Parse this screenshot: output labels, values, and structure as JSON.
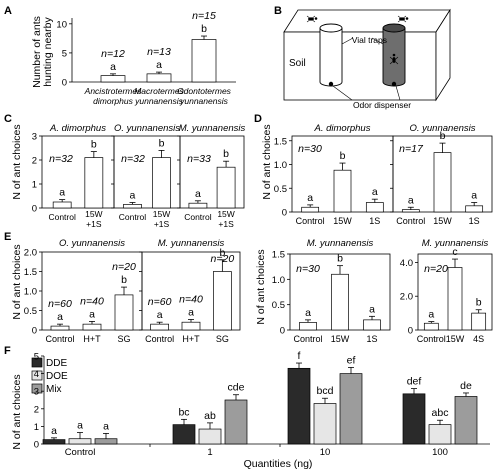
{
  "panels": {
    "A": {
      "letter": "A",
      "ylabel": [
        "Number of ants",
        "hunting nearby"
      ],
      "yticks": [
        "0",
        "5",
        "10"
      ],
      "chart_data": {
        "type": "bar",
        "ylim": [
          0,
          11
        ],
        "categories": [
          [
            "Ancistrotermes",
            "dimorphus"
          ],
          [
            "Macrotermes",
            "yunnanensis"
          ],
          [
            "Odontotermes",
            "yunnanensis"
          ]
        ],
        "values": [
          1.1,
          1.4,
          7.3
        ],
        "errors": [
          0.3,
          0.3,
          0.6
        ],
        "letters": [
          "a",
          "a",
          "b"
        ],
        "n_labels": [
          "n=12",
          "n=13",
          "n=15"
        ]
      }
    },
    "B": {
      "letter": "B",
      "soil_label": "Soil",
      "vial_label": "Vial traps",
      "odor_label": "Odor dispenser"
    },
    "C": {
      "letter": "C",
      "ylabel": "N of ant choices",
      "yticks": [
        "0",
        "1",
        "2",
        "3"
      ],
      "chart_data": [
        {
          "type": "bar",
          "title": "A. dimorphus",
          "n_label": "n=32",
          "categories": [
            "Control",
            [
              "15W",
              "+1S"
            ]
          ],
          "values": [
            0.25,
            2.1
          ],
          "errors": [
            0.1,
            0.25
          ],
          "letters": [
            "a",
            "b"
          ]
        },
        {
          "type": "bar",
          "title": "O. yunnanensis",
          "n_label": "n=32",
          "categories": [
            "Control",
            [
              "15W",
              "+1S"
            ]
          ],
          "values": [
            0.15,
            2.1
          ],
          "errors": [
            0.08,
            0.3
          ],
          "letters": [
            "a",
            "b"
          ]
        },
        {
          "type": "bar",
          "title": "M. yunnanensis",
          "n_label": "n=33",
          "categories": [
            "Control",
            [
              "15W",
              "+1S"
            ]
          ],
          "values": [
            0.2,
            1.7
          ],
          "errors": [
            0.1,
            0.25
          ],
          "letters": [
            "a",
            "b"
          ]
        }
      ]
    },
    "D": {
      "letter": "D",
      "ylabel": "N of ant choices",
      "yticks": [
        "0",
        "0.5",
        "1.0",
        "1.5"
      ],
      "chart_data": [
        {
          "type": "bar",
          "title": "A. dimorphus",
          "n_label": "n=30",
          "categories": [
            "Control",
            "15W",
            "1S"
          ],
          "values": [
            0.1,
            0.88,
            0.2
          ],
          "errors": [
            0.05,
            0.15,
            0.07
          ],
          "letters": [
            "a",
            "b",
            "a"
          ]
        },
        {
          "type": "bar",
          "title": "O. yunnanensis",
          "n_label": "n=17",
          "categories": [
            "Control",
            "15W",
            "1S"
          ],
          "values": [
            0.05,
            1.25,
            0.13
          ],
          "errors": [
            0.05,
            0.2,
            0.07
          ],
          "letters": [
            "a",
            "b",
            "a"
          ]
        }
      ]
    },
    "E": {
      "letter": "E",
      "ylabel": "N of ant choices",
      "yticks": [
        "0",
        "0.5",
        "1.0",
        "1.5",
        "2.0"
      ],
      "chart_data": [
        {
          "type": "bar",
          "title": "O. yunnanensis",
          "categories": [
            "Control",
            "H+T",
            "SG"
          ],
          "values": [
            0.1,
            0.15,
            0.9
          ],
          "errors": [
            0.05,
            0.07,
            0.2
          ],
          "letters": [
            "a",
            "a",
            "b"
          ],
          "n_labels": [
            "n=60",
            "n=40",
            "n=20"
          ]
        },
        {
          "type": "bar",
          "title": "M. yunnanensis",
          "categories": [
            "Control",
            "H+T",
            "SG"
          ],
          "values": [
            0.15,
            0.2,
            1.5
          ],
          "errors": [
            0.05,
            0.07,
            0.3
          ],
          "letters": [
            "a",
            "a",
            "b"
          ],
          "n_labels": [
            "n=60",
            "n=40",
            "n=20"
          ]
        }
      ]
    },
    "E2": {
      "ylabel": "N of ant choices",
      "chart_data": [
        {
          "type": "bar",
          "title": "M. yunnanensis",
          "n_label": "n=30",
          "categories": [
            "Control",
            "15W",
            "1S"
          ],
          "yticks": [
            "0",
            "0.5",
            "1.0",
            "1.5"
          ],
          "ylim": [
            0,
            1.5
          ],
          "values": [
            0.15,
            1.1,
            0.2
          ],
          "errors": [
            0.05,
            0.17,
            0.07
          ],
          "letters": [
            "a",
            "b",
            "a"
          ]
        },
        {
          "type": "bar",
          "title": "M. yunnanensis",
          "n_label": "n=20",
          "categories": [
            "Control",
            "15W",
            "4S"
          ],
          "yticks": [
            "0",
            "2.0",
            "4.0"
          ],
          "ylim": [
            0,
            4.5
          ],
          "values": [
            0.4,
            3.7,
            1.0
          ],
          "errors": [
            0.1,
            0.5,
            0.2
          ],
          "letters": [
            "a",
            "c",
            "b"
          ]
        }
      ]
    },
    "F": {
      "letter": "F",
      "ylabel": "N of ant choices",
      "xlabel": "Quantities (ng)",
      "yticks": [
        "0",
        "1",
        "2",
        "3",
        "4",
        "5"
      ],
      "legend": [
        {
          "name": "DDE",
          "color": "#2a2a2a"
        },
        {
          "name": "DOE",
          "color": "#e6e6e6"
        },
        {
          "name": "Mix",
          "color": "#9c9c9c"
        }
      ],
      "chart_data": {
        "type": "bar",
        "ylim": [
          0,
          5
        ],
        "categories": [
          "Control",
          "1",
          "10",
          "100"
        ],
        "series": [
          {
            "name": "DDE",
            "values": [
              0.25,
              1.1,
              4.3,
              2.85
            ],
            "errors": [
              0.1,
              0.3,
              0.3,
              0.3
            ],
            "letters": [
              "a",
              "bc",
              "f",
              "def"
            ]
          },
          {
            "name": "DOE",
            "values": [
              0.3,
              0.85,
              2.3,
              1.1
            ],
            "errors": [
              0.35,
              0.35,
              0.3,
              0.25
            ],
            "letters": [
              "a",
              "ab",
              "bcd",
              "abc"
            ]
          },
          {
            "name": "Mix",
            "values": [
              0.3,
              2.5,
              4.0,
              2.7
            ],
            "errors": [
              0.3,
              0.3,
              0.35,
              0.2
            ],
            "letters": [
              "a",
              "cde",
              "ef",
              "de"
            ]
          }
        ]
      }
    }
  }
}
